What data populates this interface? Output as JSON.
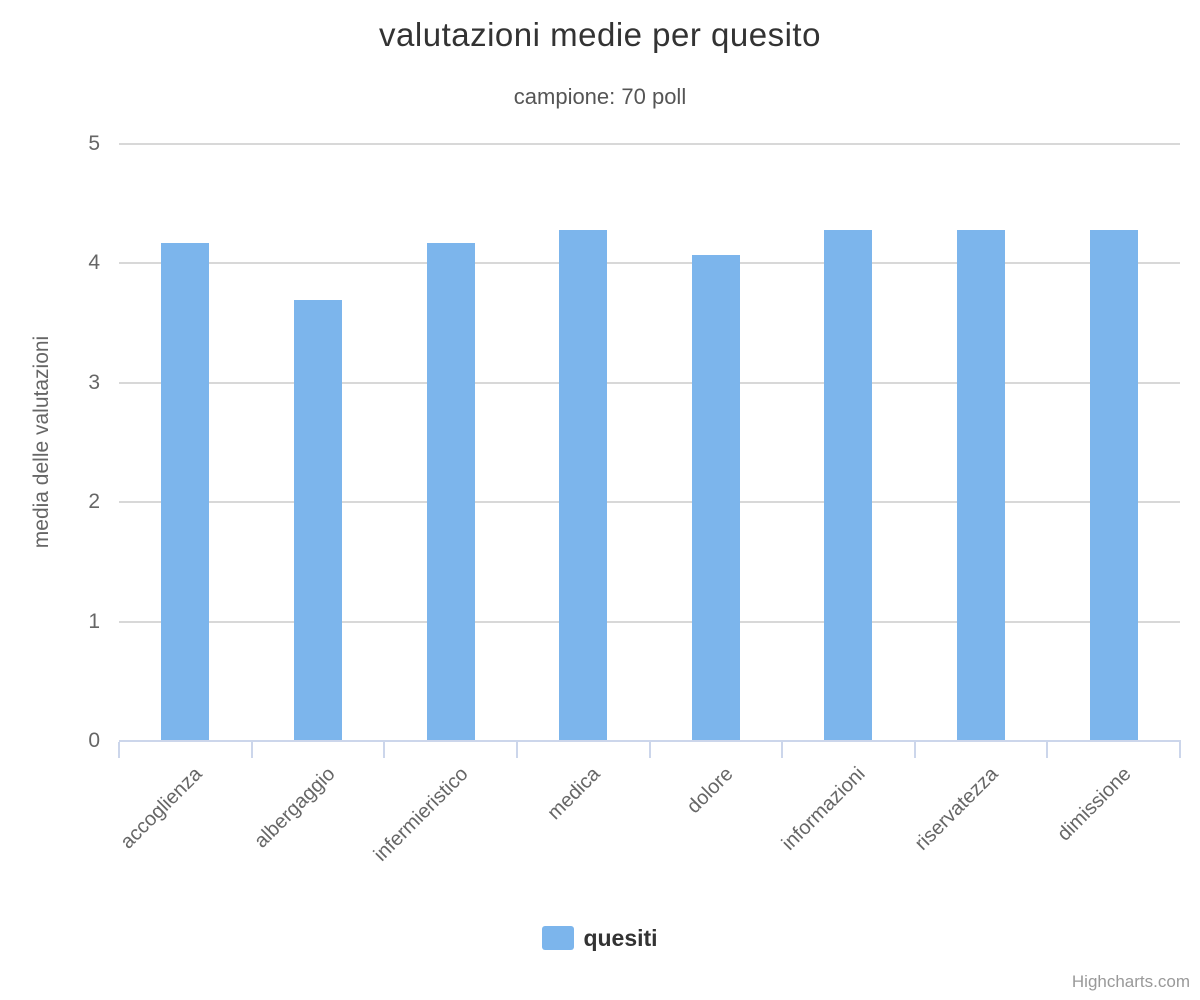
{
  "chart_data": {
    "type": "bar",
    "title": "valutazioni medie per quesito",
    "subtitle": "campione: 70 poll",
    "categories": [
      "accoglienza",
      "albergaggio",
      "infermieristico",
      "medica",
      "dolore",
      "informazioni",
      "riservatezza",
      "dimissione"
    ],
    "series": [
      {
        "name": "quesiti",
        "values": [
          4.17,
          3.69,
          4.17,
          4.28,
          4.07,
          4.28,
          4.28,
          4.28
        ]
      }
    ],
    "xlabel": "",
    "ylabel": "media delle valutazioni",
    "ylim": [
      0,
      5
    ],
    "yticks": [
      0,
      1,
      2,
      3,
      4,
      5
    ],
    "grid": true,
    "legend_position": "bottom",
    "x_label_rotation": -45
  },
  "legend": {
    "items": [
      {
        "label": "quesiti",
        "color": "#7cb5ec"
      }
    ]
  },
  "credits": {
    "label": "Highcharts.com"
  },
  "colors": {
    "bar": "#7cb5ec",
    "grid": "#d8d8d8",
    "axis": "#ccd6eb",
    "title": "#333333",
    "subtitle": "#555555",
    "label": "#666666",
    "legend_text": "#333333",
    "credits": "#999999",
    "background": "#ffffff"
  }
}
